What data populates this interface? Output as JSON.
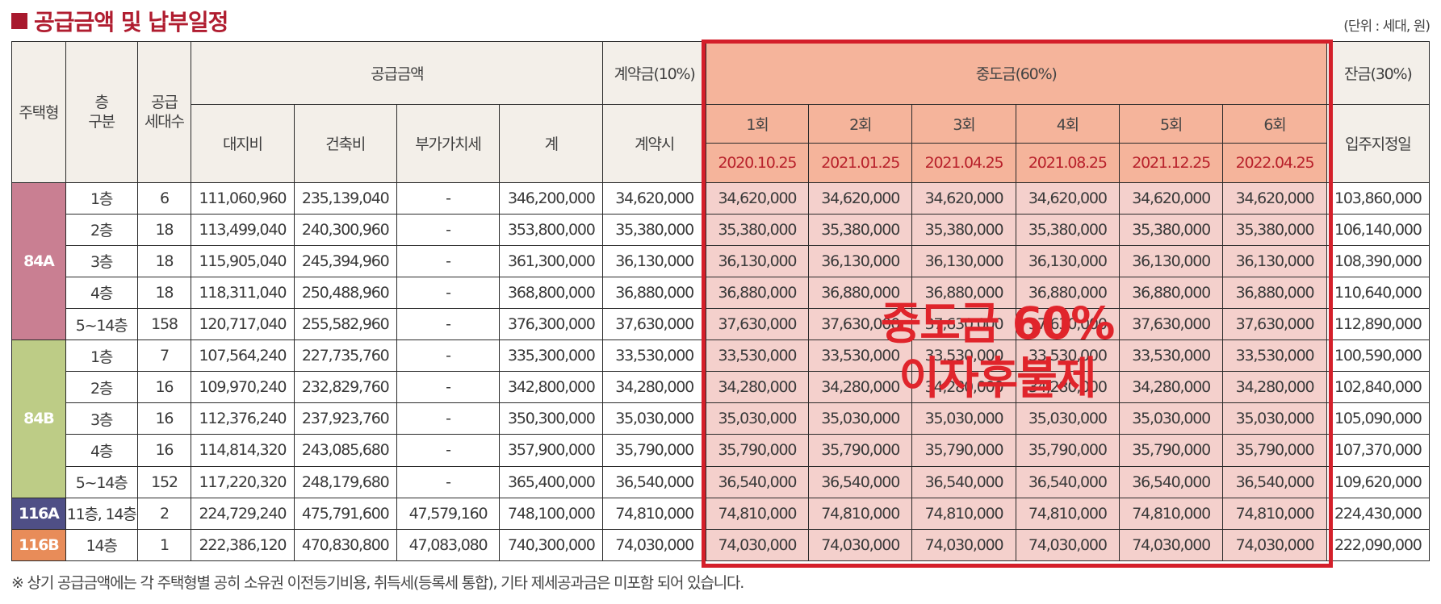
{
  "title": "공급금액 및 납부일정",
  "unit": "(단위 : 세대, 원)",
  "headers": {
    "type": "주택형",
    "floor": "층\n구분",
    "units": "공급\n세대수",
    "supply": "공급금액",
    "deposit": "계약금(10%)",
    "middle": "중도금(60%)",
    "balance": "잔금(30%)",
    "land": "대지비",
    "building": "건축비",
    "vat": "부가가치세",
    "total": "계",
    "contract_time": "계약시",
    "move_in": "입주지정일",
    "installments": [
      "1회",
      "2회",
      "3회",
      "4회",
      "5회",
      "6회"
    ],
    "dates": [
      "2020.10.25",
      "2021.01.25",
      "2021.04.25",
      "2021.08.25",
      "2021.12.25",
      "2022.04.25"
    ]
  },
  "type_labels": [
    "84A",
    "84B",
    "116A",
    "116B"
  ],
  "rows": [
    {
      "floor": "1층",
      "units": "6",
      "land": "111,060,960",
      "building": "235,139,040",
      "vat": "-",
      "total": "346,200,000",
      "deposit": "34,620,000",
      "middle": [
        "34,620,000",
        "34,620,000",
        "34,620,000",
        "34,620,000",
        "34,620,000",
        "34,620,000"
      ],
      "balance": "103,860,000"
    },
    {
      "floor": "2층",
      "units": "18",
      "land": "113,499,040",
      "building": "240,300,960",
      "vat": "-",
      "total": "353,800,000",
      "deposit": "35,380,000",
      "middle": [
        "35,380,000",
        "35,380,000",
        "35,380,000",
        "35,380,000",
        "35,380,000",
        "35,380,000"
      ],
      "balance": "106,140,000"
    },
    {
      "floor": "3층",
      "units": "18",
      "land": "115,905,040",
      "building": "245,394,960",
      "vat": "-",
      "total": "361,300,000",
      "deposit": "36,130,000",
      "middle": [
        "36,130,000",
        "36,130,000",
        "36,130,000",
        "36,130,000",
        "36,130,000",
        "36,130,000"
      ],
      "balance": "108,390,000"
    },
    {
      "floor": "4층",
      "units": "18",
      "land": "118,311,040",
      "building": "250,488,960",
      "vat": "-",
      "total": "368,800,000",
      "deposit": "36,880,000",
      "middle": [
        "36,880,000",
        "36,880,000",
        "36,880,000",
        "36,880,000",
        "36,880,000",
        "36,880,000"
      ],
      "balance": "110,640,000"
    },
    {
      "floor": "5~14층",
      "units": "158",
      "land": "120,717,040",
      "building": "255,582,960",
      "vat": "-",
      "total": "376,300,000",
      "deposit": "37,630,000",
      "middle": [
        "37,630,000",
        "37,630,000",
        "37,630,000",
        "37,630,000",
        "37,630,000",
        "37,630,000"
      ],
      "balance": "112,890,000"
    },
    {
      "floor": "1층",
      "units": "7",
      "land": "107,564,240",
      "building": "227,735,760",
      "vat": "-",
      "total": "335,300,000",
      "deposit": "33,530,000",
      "middle": [
        "33,530,000",
        "33,530,000",
        "33,530,000",
        "33,530,000",
        "33,530,000",
        "33,530,000"
      ],
      "balance": "100,590,000"
    },
    {
      "floor": "2층",
      "units": "16",
      "land": "109,970,240",
      "building": "232,829,760",
      "vat": "-",
      "total": "342,800,000",
      "deposit": "34,280,000",
      "middle": [
        "34,280,000",
        "34,280,000",
        "34,280,000",
        "34,280,000",
        "34,280,000",
        "34,280,000"
      ],
      "balance": "102,840,000"
    },
    {
      "floor": "3층",
      "units": "16",
      "land": "112,376,240",
      "building": "237,923,760",
      "vat": "-",
      "total": "350,300,000",
      "deposit": "35,030,000",
      "middle": [
        "35,030,000",
        "35,030,000",
        "35,030,000",
        "35,030,000",
        "35,030,000",
        "35,030,000"
      ],
      "balance": "105,090,000"
    },
    {
      "floor": "4층",
      "units": "16",
      "land": "114,814,320",
      "building": "243,085,680",
      "vat": "-",
      "total": "357,900,000",
      "deposit": "35,790,000",
      "middle": [
        "35,790,000",
        "35,790,000",
        "35,790,000",
        "35,790,000",
        "35,790,000",
        "35,790,000"
      ],
      "balance": "107,370,000"
    },
    {
      "floor": "5~14층",
      "units": "152",
      "land": "117,220,320",
      "building": "248,179,680",
      "vat": "-",
      "total": "365,400,000",
      "deposit": "36,540,000",
      "middle": [
        "36,540,000",
        "36,540,000",
        "36,540,000",
        "36,540,000",
        "36,540,000",
        "36,540,000"
      ],
      "balance": "109,620,000"
    },
    {
      "floor": "11층, 14층",
      "units": "2",
      "land": "224,729,240",
      "building": "475,791,600",
      "vat": "47,579,160",
      "total": "748,100,000",
      "deposit": "74,810,000",
      "middle": [
        "74,810,000",
        "74,810,000",
        "74,810,000",
        "74,810,000",
        "74,810,000",
        "74,810,000"
      ],
      "balance": "224,430,000"
    },
    {
      "floor": "14층",
      "units": "1",
      "land": "222,386,120",
      "building": "470,830,800",
      "vat": "47,083,080",
      "total": "740,300,000",
      "deposit": "74,030,000",
      "middle": [
        "74,030,000",
        "74,030,000",
        "74,030,000",
        "74,030,000",
        "74,030,000",
        "74,030,000"
      ],
      "balance": "222,090,000"
    }
  ],
  "overlay": {
    "line1": "중도금 60%",
    "line2": "이자후불제"
  },
  "note": "※ 상기 공급금액에는 각 주택형별 공히 소유권 이전등기비용, 취득세(등록세 통합), 기타 제세공과금은 미포함 되어 있습니다.",
  "colors": {
    "title_red": "#b01d30",
    "highlight_border": "#d41f2a",
    "middle_header": "#f5b49b",
    "middle_cell": "#f4d0cc",
    "type_84A": "#c97f92",
    "type_84B": "#bdcc86",
    "type_116A": "#4f4f86",
    "type_116B": "#e88c59",
    "header_bg": "#f3efe9",
    "date_text": "#b8212b"
  }
}
